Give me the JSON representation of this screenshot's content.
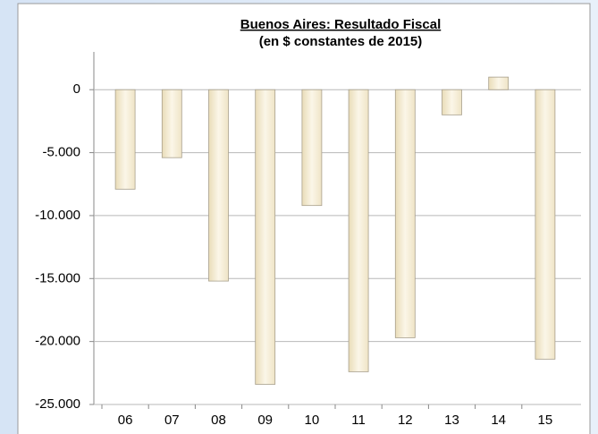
{
  "chart_data": {
    "type": "bar",
    "title": "Buenos Aires: Resultado Fiscal",
    "subtitle": "(en  $ constantes de 2015)",
    "categories": [
      "06",
      "07",
      "08",
      "09",
      "10",
      "11",
      "12",
      "13",
      "14",
      "15"
    ],
    "values": [
      -7900,
      -5400,
      -15200,
      -23400,
      -9200,
      -22400,
      -19700,
      -2000,
      1000,
      -21400
    ],
    "color": "#f3e8cc",
    "ylim": [
      -25000,
      3000
    ],
    "yticks": [
      0,
      {
        "value": -5000,
        "label": "-5.000"
      },
      {
        "value": -10000,
        "label": "-10.000"
      },
      {
        "value": -15000,
        "label": "-15.000"
      },
      {
        "value": -20000,
        "label": "-20.000"
      },
      {
        "value": -25000,
        "label": "-25.000"
      }
    ],
    "grid": true
  }
}
